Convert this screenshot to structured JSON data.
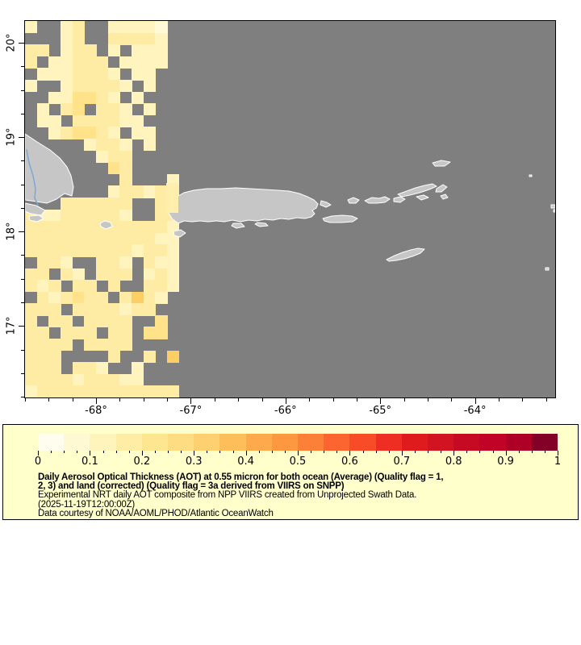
{
  "legend": {
    "background": "#FFFFCC",
    "title_line1": "Daily Aerosol Optical Thickness (AOT) at 0.55 micron for both ocean (Average) (Quality flag = 1,",
    "title_line2": "2, 3) and land (corrected) (Quality flag = 3a derived from VIIRS on SNPP)",
    "subtitle": "Experimental NRT daily AOT composite from NPP VIIRS created from Unprojected Swath Data.",
    "timestamp": "(2025-11-19T12:00:00Z)",
    "credit": "Data courtesy of NOAA/AOML/PHOD/Atlantic OceanWatch"
  },
  "chart_data": {
    "type": "heatmap",
    "projection": "geographic",
    "region": "Puerto Rico / northeastern Caribbean",
    "lon_range": [
      -68.758,
      -63.162
    ],
    "lat_range": [
      16.25,
      20.24
    ],
    "x_major_ticks": [
      {
        "deg": -68,
        "label": "-68°"
      },
      {
        "deg": -67,
        "label": "-67°"
      },
      {
        "deg": -66,
        "label": "-66°"
      },
      {
        "deg": -65,
        "label": "-65°"
      },
      {
        "deg": -64,
        "label": "-64°"
      }
    ],
    "y_major_ticks": [
      {
        "deg": 20,
        "label": "20°"
      },
      {
        "deg": 19,
        "label": "19°"
      },
      {
        "deg": 18,
        "label": "18°"
      },
      {
        "deg": 17,
        "label": "17°"
      }
    ],
    "minor_tick_step_deg": 0.25,
    "no_data_color": "#7f7f7f",
    "land_color": "#c6c6c6",
    "coastline_color": "#ffffff",
    "colorbar": {
      "min": 0,
      "max": 1,
      "major_ticks": [
        {
          "v": 0.0,
          "label": "0"
        },
        {
          "v": 0.1,
          "label": "0.1"
        },
        {
          "v": 0.2,
          "label": "0.2"
        },
        {
          "v": 0.3,
          "label": "0.3"
        },
        {
          "v": 0.4,
          "label": "0.4"
        },
        {
          "v": 0.5,
          "label": "0.5"
        },
        {
          "v": 0.6,
          "label": "0.6"
        },
        {
          "v": 0.7,
          "label": "0.7"
        },
        {
          "v": 0.8,
          "label": "0.8"
        },
        {
          "v": 0.9,
          "label": "0.9"
        },
        {
          "v": 1.0,
          "label": "1"
        }
      ],
      "minor_tick_step": 0.025,
      "segment_colors": [
        "#FFFEEE",
        "#FFF9D3",
        "#FFF4BC",
        "#FFEDA6",
        "#FEE691",
        "#FEDD82",
        "#FED06F",
        "#FEBE59",
        "#FEA94B",
        "#FD9840",
        "#FC8038",
        "#FC652F",
        "#F84C29",
        "#EE2E22",
        "#DF1B1E",
        "#D11322",
        "#C70A24",
        "#C00327",
        "#AE0026",
        "#830026"
      ]
    },
    "aot_grid": {
      "cell_size_deg": 0.125,
      "palette": {
        "2": "#FFF9D6",
        "3": "#FFF3BE",
        "4": "#FFECA4",
        "5": "#FFE28A",
        "6": "#FCCE63"
      },
      "approx_aot_values": {
        "2": 0.04,
        "3": 0.07,
        "4": 0.11,
        "5": 0.17,
        "6": 0.27
      },
      "rows": [
        "3..34..33332..",
        "...34..44443..",
        "44.344.3.333..",
        "4.33444.3333..",
        ".3334443.33...",
        "3..344443.3...",
        "..335543.3....",
        ".3.45.443.3...",
        ".33.444433....",
        "..345543.33...",
        ".....3443.3...",
        "......344.....",
        ".......54.....",
        "........4...3.",
        ".......344344.",
        "...444444..44.",
        "433444443..44.",
        "4444444444443.",
        "4444444444433.",
        "4444444443443.",
        ".443..443.433.",
        "44.43.444.343.",
        "434.44.4..443.",
        ".434544.4643..",
        "444.4444344...",
        "4.44.4444..5..",
        "44.444.44.55..",
        "4444.4444.....",
        "444....4..4.6.",
        "444.443..3....",
        "4444344433....",
        "3444444444444."
      ]
    }
  }
}
